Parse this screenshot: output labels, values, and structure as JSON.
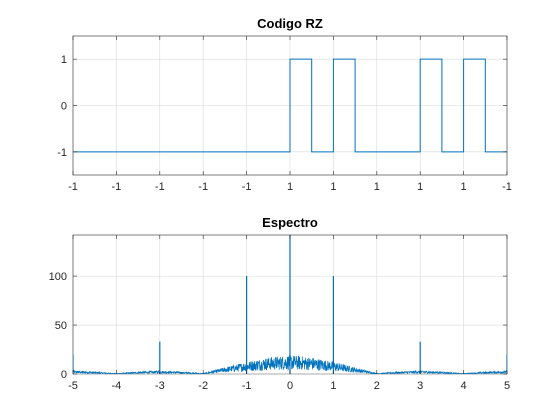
{
  "colors": {
    "line": "#0072BD",
    "axis": "#262626",
    "grid": "#d9d9d9",
    "background": "#ffffff"
  },
  "chart_data": [
    {
      "type": "line",
      "title": "Codigo RZ",
      "xlabel": "",
      "ylabel": "",
      "grid": true,
      "xlim": [
        0,
        10
      ],
      "ylim": [
        -1.5,
        1.5
      ],
      "x_ticks": [
        0,
        1,
        2,
        3,
        4,
        5,
        6,
        7,
        8,
        9,
        10
      ],
      "x_tick_labels": [
        "-1",
        "-1",
        "-1",
        "-1",
        "-1",
        "1",
        "1",
        "1",
        "1",
        "1",
        "-1"
      ],
      "y_ticks": [
        -1,
        0,
        1
      ],
      "y_tick_labels": [
        "-1",
        "0",
        "1"
      ],
      "series": [
        {
          "x": [
            0,
            5,
            5,
            5.5,
            5.5,
            6,
            6,
            6.5,
            6.5,
            7,
            7,
            8,
            8,
            8.5,
            8.5,
            9,
            9,
            9.5,
            9.5,
            10
          ],
          "y": [
            -1,
            -1,
            1,
            1,
            -1,
            -1,
            1,
            1,
            -1,
            -1,
            -1,
            -1,
            1,
            1,
            -1,
            -1,
            1,
            1,
            -1,
            -1
          ]
        }
      ]
    },
    {
      "type": "line",
      "title": "Espectro",
      "xlabel": "",
      "ylabel": "",
      "grid": true,
      "xlim": [
        -5,
        5
      ],
      "ylim": [
        0,
        142
      ],
      "x_ticks": [
        -5,
        -4,
        -3,
        -2,
        -1,
        0,
        1,
        2,
        3,
        4,
        5
      ],
      "x_tick_labels": [
        "-5",
        "-4",
        "-3",
        "-2",
        "-1",
        "0",
        "1",
        "2",
        "3",
        "4",
        "5"
      ],
      "y_ticks": [
        0,
        50,
        100
      ],
      "y_tick_labels": [
        "0",
        "50",
        "100"
      ],
      "envelope": {
        "x": [
          -5,
          -4.5,
          -4,
          -3.5,
          -3,
          -2.5,
          -2,
          -1.5,
          -1,
          -0.5,
          0,
          0.5,
          1,
          1.5,
          2,
          2.5,
          3,
          3.5,
          4,
          4.5,
          5
        ],
        "y": [
          3,
          2,
          0.5,
          2,
          3,
          2,
          0.5,
          6,
          11,
          15,
          17,
          15,
          11,
          6,
          0.5,
          2,
          3,
          2,
          0.5,
          2,
          3
        ]
      },
      "peaks": {
        "x": [
          -5,
          -3,
          -1,
          0,
          1,
          3,
          5
        ],
        "y": [
          20,
          33,
          100,
          142,
          100,
          33,
          20
        ]
      }
    }
  ]
}
